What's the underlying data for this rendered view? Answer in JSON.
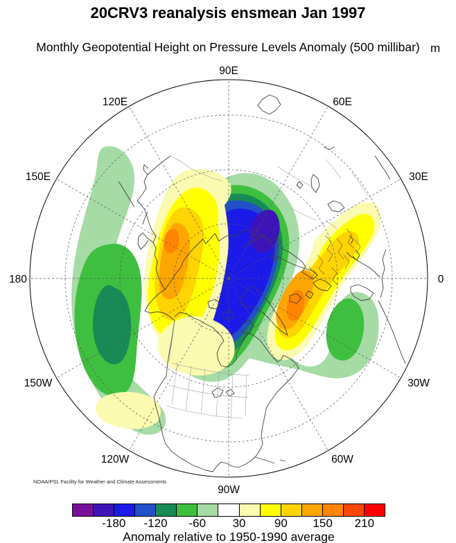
{
  "title": "20CRV3 reanalysis ensmean Jan 1997",
  "subtitle": "Monthly Geopotential Height on Pressure Levels Anomaly (500 millibar)",
  "units_label": "m",
  "credit": "NOAA/PSL Facility for Weather and Climate Assessments",
  "map": {
    "lon_labels": [
      "90E",
      "120E",
      "150E",
      "180",
      "150W",
      "120W",
      "90W",
      "60W",
      "30W",
      "0",
      "30E",
      "60E"
    ]
  },
  "palette": {
    "purple": "#7a0f9b",
    "indigo": "#3c14b8",
    "blue": "#1b1ae8",
    "steelblue": "#2150c8",
    "darkgreen": "#178a55",
    "green": "#3fbf3f",
    "lightgreen": "#a6dba6",
    "white": "#ffffff",
    "paleyellow": "#fafab0",
    "yellow": "#ffff00",
    "gold": "#ffd400",
    "orange": "#ffa500",
    "darkorange": "#ff8400",
    "redorange": "#fc4700",
    "red": "#fb0000"
  },
  "colorbar": {
    "colors": [
      "#7a0f9b",
      "#3c14b8",
      "#1b1ae8",
      "#2150c8",
      "#178a55",
      "#3fbf3f",
      "#a6dba6",
      "#ffffff",
      "#fafab0",
      "#ffff00",
      "#ffd400",
      "#ffa500",
      "#ff8400",
      "#fc4700",
      "#fb0000"
    ],
    "ticks": [
      {
        "label": "-180",
        "boundary_index": 2
      },
      {
        "label": "-120",
        "boundary_index": 4
      },
      {
        "label": "-60",
        "boundary_index": 6
      },
      {
        "label": "30",
        "boundary_index": 8
      },
      {
        "label": "90",
        "boundary_index": 10
      },
      {
        "label": "150",
        "boundary_index": 12
      },
      {
        "label": "210",
        "boundary_index": 14
      }
    ],
    "caption": "Anomaly relative to 1950-1990 average"
  },
  "chart_data": {
    "type": "heatmap",
    "variable": "Monthly Geopotential Height on Pressure Levels Anomaly",
    "level": "500 millibar",
    "dataset": "20CRV3 reanalysis ensmean",
    "period": "Jan 1997",
    "baseline": "1950-1990 average",
    "units": "m",
    "projection": "north polar stereographic",
    "contour_interval": 30,
    "levels": [
      -210,
      -180,
      -150,
      -120,
      -90,
      -60,
      -30,
      30,
      60,
      90,
      120,
      150,
      180,
      210
    ],
    "colorbar_tick_labels": [
      "-180",
      "-120",
      "-60",
      "30",
      "90",
      "150",
      "210"
    ],
    "longitude_labels": [
      "90E",
      "120E",
      "150E",
      "180",
      "150W",
      "120W",
      "90W",
      "60W",
      "30W",
      "0",
      "30E",
      "60E"
    ],
    "anomaly_centers": [
      {
        "region": "Barents/Kara Seas across pole to Canadian Arctic",
        "sign": "negative",
        "approx_extreme_m": -180
      },
      {
        "region": "Central North Pacific",
        "sign": "negative",
        "approx_extreme_m": -110
      },
      {
        "region": "Northeast Siberia / Sea of Okhotsk",
        "sign": "positive",
        "approx_extreme_m": 150
      },
      {
        "region": "Iceland / Northern Europe",
        "sign": "positive",
        "approx_extreme_m": 150
      },
      {
        "region": "Subtropical Northeast Atlantic",
        "sign": "negative",
        "approx_extreme_m": -80
      },
      {
        "region": "Labrador / Northwest Atlantic band",
        "sign": "negative",
        "approx_extreme_m": -50
      },
      {
        "region": "Western Canada",
        "sign": "positive",
        "approx_extreme_m": 50
      },
      {
        "region": "Subtropical Northeast Pacific",
        "sign": "positive",
        "approx_extreme_m": 40
      }
    ]
  }
}
